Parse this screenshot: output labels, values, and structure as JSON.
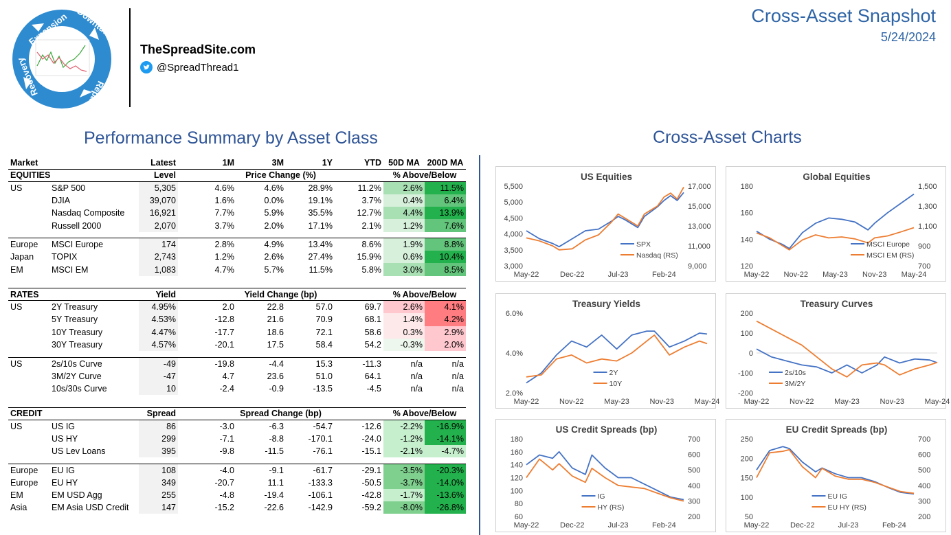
{
  "header": {
    "site_name": "TheSpreadSite.com",
    "twitter_handle": "@SpreadThread1",
    "snapshot_title": "Cross-Asset Snapshot",
    "snapshot_date": "5/24/2024",
    "logo_labels": [
      "Expansion",
      "Downturn",
      "Repair",
      "Recovery"
    ]
  },
  "colors": {
    "blue_title": "#2f5597",
    "series_blue": "#4472c4",
    "series_orange": "#ed7d31",
    "green_strong": "#22b14c",
    "green_light": "#c6efce",
    "red_strong": "#ff7c80",
    "red_light": "#ffc7ce"
  },
  "performance": {
    "title": "Performance Summary by Asset Class",
    "columns": [
      "Market",
      "",
      "Latest",
      "1M",
      "3M",
      "1Y",
      "YTD",
      "50D MA",
      "200D MA"
    ],
    "groups": [
      {
        "section": "EQUITIES",
        "level_label": "Level",
        "change_label": "Price Change (%)",
        "ma_label": "% Above/Below",
        "rows": [
          {
            "region": "US",
            "name": "S&P 500",
            "latest": "5,305",
            "m1": "4.6%",
            "m3": "4.6%",
            "y1": "28.9%",
            "ytd": "11.2%",
            "ma50": "2.6%",
            "ma200": "11.5%"
          },
          {
            "region": "",
            "name": "DJIA",
            "latest": "39,070",
            "m1": "1.6%",
            "m3": "0.0%",
            "y1": "19.1%",
            "ytd": "3.7%",
            "ma50": "0.4%",
            "ma200": "6.4%"
          },
          {
            "region": "",
            "name": "Nasdaq Composite",
            "latest": "16,921",
            "m1": "7.7%",
            "m3": "5.9%",
            "y1": "35.5%",
            "ytd": "12.7%",
            "ma50": "4.4%",
            "ma200": "13.9%"
          },
          {
            "region": "",
            "name": "Russell 2000",
            "latest": "2,070",
            "m1": "3.7%",
            "m3": "2.0%",
            "y1": "17.1%",
            "ytd": "2.1%",
            "ma50": "1.2%",
            "ma200": "7.6%"
          },
          {
            "break": true
          },
          {
            "region": "Europe",
            "name": "MSCI Europe",
            "latest": "174",
            "m1": "2.8%",
            "m3": "4.9%",
            "y1": "13.4%",
            "ytd": "8.6%",
            "ma50": "1.9%",
            "ma200": "8.8%"
          },
          {
            "region": "Japan",
            "name": "TOPIX",
            "latest": "2,743",
            "m1": "1.2%",
            "m3": "2.6%",
            "y1": "27.4%",
            "ytd": "15.9%",
            "ma50": "0.6%",
            "ma200": "10.4%"
          },
          {
            "region": "EM",
            "name": "MSCI EM",
            "latest": "1,083",
            "m1": "4.7%",
            "m3": "5.7%",
            "y1": "11.5%",
            "ytd": "5.8%",
            "ma50": "3.0%",
            "ma200": "8.5%"
          }
        ]
      },
      {
        "section": "RATES",
        "level_label": "Yield",
        "change_label": "Yield Change (bp)",
        "ma_label": "% Above/Below",
        "rows": [
          {
            "region": "US",
            "name": "2Y Treasury",
            "latest": "4.95%",
            "m1": "2.0",
            "m3": "22.8",
            "y1": "57.0",
            "ytd": "69.7",
            "ma50": "2.6%",
            "ma200": "4.1%"
          },
          {
            "region": "",
            "name": "5Y Treasury",
            "latest": "4.53%",
            "m1": "-12.8",
            "m3": "21.6",
            "y1": "70.9",
            "ytd": "68.1",
            "ma50": "1.4%",
            "ma200": "4.2%"
          },
          {
            "region": "",
            "name": "10Y Treasury",
            "latest": "4.47%",
            "m1": "-17.7",
            "m3": "18.6",
            "y1": "72.1",
            "ytd": "58.6",
            "ma50": "0.3%",
            "ma200": "2.9%"
          },
          {
            "region": "",
            "name": "30Y Treasury",
            "latest": "4.57%",
            "m1": "-20.1",
            "m3": "17.5",
            "y1": "58.4",
            "ytd": "54.2",
            "ma50": "-0.3%",
            "ma200": "2.0%"
          },
          {
            "break": true
          },
          {
            "region": "US",
            "name": "2s/10s Curve",
            "latest": "-49",
            "m1": "-19.8",
            "m3": "-4.4",
            "y1": "15.3",
            "ytd": "-11.3",
            "ma50": "n/a",
            "ma200": "n/a"
          },
          {
            "region": "",
            "name": "3M/2Y Curve",
            "latest": "-47",
            "m1": "4.7",
            "m3": "23.6",
            "y1": "51.0",
            "ytd": "64.1",
            "ma50": "n/a",
            "ma200": "n/a"
          },
          {
            "region": "",
            "name": "10s/30s Curve",
            "latest": "10",
            "m1": "-2.4",
            "m3": "-0.9",
            "y1": "-13.5",
            "ytd": "-4.5",
            "ma50": "n/a",
            "ma200": "n/a"
          }
        ]
      },
      {
        "section": "CREDIT",
        "level_label": "Spread",
        "change_label": "Spread Change (bp)",
        "ma_label": "% Above/Below",
        "rows": [
          {
            "region": "US",
            "name": "US IG",
            "latest": "86",
            "m1": "-3.0",
            "m3": "-6.3",
            "y1": "-54.7",
            "ytd": "-12.6",
            "ma50": "-2.2%",
            "ma200": "-16.9%"
          },
          {
            "region": "",
            "name": "US HY",
            "latest": "299",
            "m1": "-7.1",
            "m3": "-8.8",
            "y1": "-170.1",
            "ytd": "-24.0",
            "ma50": "-1.2%",
            "ma200": "-14.1%"
          },
          {
            "region": "",
            "name": "US Lev Loans",
            "latest": "395",
            "m1": "-9.8",
            "m3": "-11.5",
            "y1": "-76.1",
            "ytd": "-15.1",
            "ma50": "-2.1%",
            "ma200": "-4.7%"
          },
          {
            "break": true
          },
          {
            "region": "Europe",
            "name": "EU IG",
            "latest": "108",
            "m1": "-4.0",
            "m3": "-9.1",
            "y1": "-61.7",
            "ytd": "-29.1",
            "ma50": "-3.5%",
            "ma200": "-20.3%"
          },
          {
            "region": "Europe",
            "name": "EU HY",
            "latest": "349",
            "m1": "-20.7",
            "m3": "11.1",
            "y1": "-133.3",
            "ytd": "-50.5",
            "ma50": "-3.7%",
            "ma200": "-14.0%"
          },
          {
            "region": "EM",
            "name": "EM USD Agg",
            "latest": "255",
            "m1": "-4.8",
            "m3": "-19.4",
            "y1": "-106.1",
            "ytd": "-42.8",
            "ma50": "-1.7%",
            "ma200": "-13.6%"
          },
          {
            "region": "Asia",
            "name": "EM Asia USD Credit",
            "latest": "147",
            "m1": "-15.2",
            "m3": "-22.6",
            "y1": "-142.9",
            "ytd": "-59.2",
            "ma50": "-8.0%",
            "ma200": "-26.8%"
          }
        ]
      }
    ]
  },
  "charts_section_title": "Cross-Asset Charts",
  "chart_data": [
    {
      "type": "line",
      "title": "US Equities",
      "x_ticks": [
        "May-22",
        "Dec-22",
        "Jul-23",
        "Feb-24"
      ],
      "ylim": [
        3000,
        5500
      ],
      "y_ticks": [
        "3,000",
        "3,500",
        "4,000",
        "4,500",
        "5,000",
        "5,500"
      ],
      "y2lim": [
        9000,
        17000
      ],
      "y2_ticks": [
        "9,000",
        "11,000",
        "13,000",
        "15,000",
        "17,000"
      ],
      "legend": "bottom-right",
      "series": [
        {
          "name": "SPX",
          "axis": "left",
          "color": "#4472c4",
          "x": [
            "May-22",
            "Jul-22",
            "Sep-22",
            "Oct-22",
            "Dec-22",
            "Feb-23",
            "Apr-23",
            "Jun-23",
            "Jul-23",
            "Aug-23",
            "Oct-23",
            "Nov-23",
            "Jan-24",
            "Feb-24",
            "Mar-24",
            "Apr-24",
            "May-24"
          ],
          "values": [
            4100,
            3850,
            3700,
            3600,
            3850,
            4100,
            4150,
            4400,
            4550,
            4450,
            4200,
            4550,
            4850,
            5050,
            5200,
            5050,
            5300
          ]
        },
        {
          "name": "Nasdaq (RS)",
          "axis": "right",
          "color": "#ed7d31",
          "x": [
            "May-22",
            "Jul-22",
            "Sep-22",
            "Oct-22",
            "Dec-22",
            "Feb-23",
            "Apr-23",
            "Jun-23",
            "Jul-23",
            "Aug-23",
            "Oct-23",
            "Nov-23",
            "Jan-24",
            "Feb-24",
            "Mar-24",
            "Apr-24",
            "May-24"
          ],
          "values": [
            11800,
            11500,
            11000,
            10600,
            10700,
            11600,
            12100,
            13400,
            14200,
            13800,
            13000,
            14200,
            15000,
            15900,
            16300,
            15700,
            16900
          ]
        }
      ]
    },
    {
      "type": "line",
      "title": "Global Equities",
      "x_ticks": [
        "May-22",
        "Nov-22",
        "May-23",
        "Nov-23",
        "May-24"
      ],
      "ylim": [
        120,
        180
      ],
      "y_ticks": [
        "120",
        "140",
        "160",
        "180"
      ],
      "y2lim": [
        700,
        1500
      ],
      "y2_ticks": [
        "700",
        "900",
        "1,100",
        "1,300",
        "1,500"
      ],
      "legend": "bottom-right",
      "series": [
        {
          "name": "MSCI Europe",
          "axis": "left",
          "color": "#4472c4",
          "x": [
            "May-22",
            "Jul-22",
            "Sep-22",
            "Oct-22",
            "Dec-22",
            "Feb-23",
            "Apr-23",
            "Jun-23",
            "Aug-23",
            "Oct-23",
            "Nov-23",
            "Jan-24",
            "Mar-24",
            "May-24"
          ],
          "values": [
            146,
            140,
            136,
            133,
            145,
            152,
            156,
            155,
            153,
            147,
            152,
            160,
            167,
            174
          ]
        },
        {
          "name": "MSCI EM (RS)",
          "axis": "right",
          "color": "#ed7d31",
          "x": [
            "May-22",
            "Jul-22",
            "Sep-22",
            "Oct-22",
            "Dec-22",
            "Feb-23",
            "Apr-23",
            "Jun-23",
            "Aug-23",
            "Oct-23",
            "Nov-23",
            "Jan-24",
            "Mar-24",
            "May-24"
          ],
          "values": [
            1030,
            980,
            900,
            860,
            960,
            1010,
            980,
            990,
            970,
            930,
            980,
            1000,
            1040,
            1083
          ]
        }
      ]
    },
    {
      "type": "line",
      "title": "Treasury Yields",
      "x_ticks": [
        "May-22",
        "Nov-22",
        "May-23",
        "Nov-23",
        "May-24"
      ],
      "ylim": [
        2.0,
        6.0
      ],
      "y_ticks": [
        "2.0%",
        "4.0%",
        "6.0%"
      ],
      "legend": "bottom-center",
      "series": [
        {
          "name": "2Y",
          "color": "#4472c4",
          "x": [
            "May-22",
            "Jul-22",
            "Sep-22",
            "Nov-22",
            "Jan-23",
            "Mar-23",
            "May-23",
            "Jul-23",
            "Sep-23",
            "Oct-23",
            "Dec-23",
            "Feb-24",
            "Apr-24",
            "May-24"
          ],
          "values": [
            2.5,
            3.0,
            3.9,
            4.6,
            4.3,
            4.9,
            4.2,
            4.9,
            5.1,
            5.1,
            4.3,
            4.6,
            5.0,
            4.95
          ]
        },
        {
          "name": "10Y",
          "color": "#ed7d31",
          "x": [
            "May-22",
            "Jul-22",
            "Sep-22",
            "Nov-22",
            "Jan-23",
            "Mar-23",
            "May-23",
            "Jul-23",
            "Sep-23",
            "Oct-23",
            "Dec-23",
            "Feb-24",
            "Apr-24",
            "May-24"
          ],
          "values": [
            2.8,
            2.9,
            3.7,
            3.9,
            3.5,
            3.7,
            3.6,
            4.0,
            4.6,
            4.9,
            3.9,
            4.3,
            4.6,
            4.47
          ]
        }
      ]
    },
    {
      "type": "line",
      "title": "Treasury Curves",
      "x_ticks": [
        "May-22",
        "Nov-22",
        "May-23",
        "Nov-23",
        "May-24"
      ],
      "ylim": [
        -200,
        200
      ],
      "y_ticks": [
        "-200",
        "-100",
        "0",
        "100",
        "200"
      ],
      "legend": "bottom-left",
      "series": [
        {
          "name": "2s/10s",
          "color": "#4472c4",
          "x": [
            "May-22",
            "Jul-22",
            "Sep-22",
            "Nov-22",
            "Jan-23",
            "Mar-23",
            "May-23",
            "Jul-23",
            "Sep-23",
            "Oct-23",
            "Dec-23",
            "Feb-24",
            "Apr-24",
            "May-24"
          ],
          "values": [
            20,
            -20,
            -40,
            -60,
            -70,
            -100,
            -60,
            -100,
            -60,
            -20,
            -50,
            -30,
            -35,
            -49
          ]
        },
        {
          "name": "3M/2Y",
          "color": "#ed7d31",
          "x": [
            "May-22",
            "Jul-22",
            "Sep-22",
            "Nov-22",
            "Jan-23",
            "Mar-23",
            "May-23",
            "Jul-23",
            "Sep-23",
            "Oct-23",
            "Dec-23",
            "Feb-24",
            "Apr-24",
            "May-24"
          ],
          "values": [
            160,
            120,
            80,
            40,
            -20,
            -80,
            -120,
            -60,
            -50,
            -60,
            -110,
            -80,
            -60,
            -47
          ]
        }
      ]
    },
    {
      "type": "line",
      "title": "US Credit Spreads (bp)",
      "x_ticks": [
        "May-22",
        "Dec-22",
        "Jul-23",
        "Feb-24"
      ],
      "ylim": [
        60,
        180
      ],
      "y_ticks": [
        "60",
        "80",
        "100",
        "120",
        "140",
        "160",
        "180"
      ],
      "y2lim": [
        200,
        700
      ],
      "y2_ticks": [
        "200",
        "300",
        "400",
        "500",
        "600",
        "700"
      ],
      "legend": "bottom-center",
      "series": [
        {
          "name": "IG",
          "axis": "left",
          "color": "#4472c4",
          "x": [
            "May-22",
            "Jul-22",
            "Sep-22",
            "Oct-22",
            "Dec-22",
            "Feb-23",
            "Mar-23",
            "May-23",
            "Jul-23",
            "Sep-23",
            "Nov-23",
            "Jan-24",
            "Mar-24",
            "May-24"
          ],
          "values": [
            140,
            155,
            150,
            160,
            135,
            125,
            155,
            135,
            120,
            120,
            110,
            100,
            90,
            86
          ]
        },
        {
          "name": "HY (RS)",
          "axis": "right",
          "color": "#ed7d31",
          "x": [
            "May-22",
            "Jul-22",
            "Sep-22",
            "Oct-22",
            "Dec-22",
            "Feb-23",
            "Mar-23",
            "May-23",
            "Jul-23",
            "Sep-23",
            "Nov-23",
            "Jan-24",
            "Mar-24",
            "May-24"
          ],
          "values": [
            450,
            570,
            500,
            540,
            460,
            420,
            510,
            450,
            400,
            390,
            380,
            350,
            320,
            299
          ]
        }
      ]
    },
    {
      "type": "line",
      "title": "EU Credit Spreads (bp)",
      "x_ticks": [
        "May-22",
        "Dec-22",
        "Jul-23",
        "Feb-24"
      ],
      "ylim": [
        50,
        250
      ],
      "y_ticks": [
        "50",
        "100",
        "150",
        "200",
        "250"
      ],
      "y2lim": [
        200,
        700
      ],
      "y2_ticks": [
        "200",
        "300",
        "400",
        "500",
        "600",
        "700"
      ],
      "legend": "bottom-center",
      "series": [
        {
          "name": "EU IG",
          "axis": "left",
          "color": "#4472c4",
          "x": [
            "May-22",
            "Jul-22",
            "Sep-22",
            "Oct-22",
            "Dec-22",
            "Feb-23",
            "Mar-23",
            "May-23",
            "Jul-23",
            "Sep-23",
            "Nov-23",
            "Jan-24",
            "Mar-24",
            "May-24"
          ],
          "values": [
            170,
            220,
            230,
            225,
            190,
            165,
            175,
            160,
            150,
            150,
            140,
            125,
            112,
            108
          ]
        },
        {
          "name": "EU HY (RS)",
          "axis": "right",
          "color": "#ed7d31",
          "x": [
            "May-22",
            "Jul-22",
            "Sep-22",
            "Oct-22",
            "Dec-22",
            "Feb-23",
            "Mar-23",
            "May-23",
            "Jul-23",
            "Sep-23",
            "Nov-23",
            "Jan-24",
            "Mar-24",
            "May-24"
          ],
          "values": [
            450,
            610,
            620,
            630,
            520,
            450,
            510,
            460,
            440,
            440,
            420,
            390,
            360,
            349
          ]
        }
      ]
    }
  ]
}
